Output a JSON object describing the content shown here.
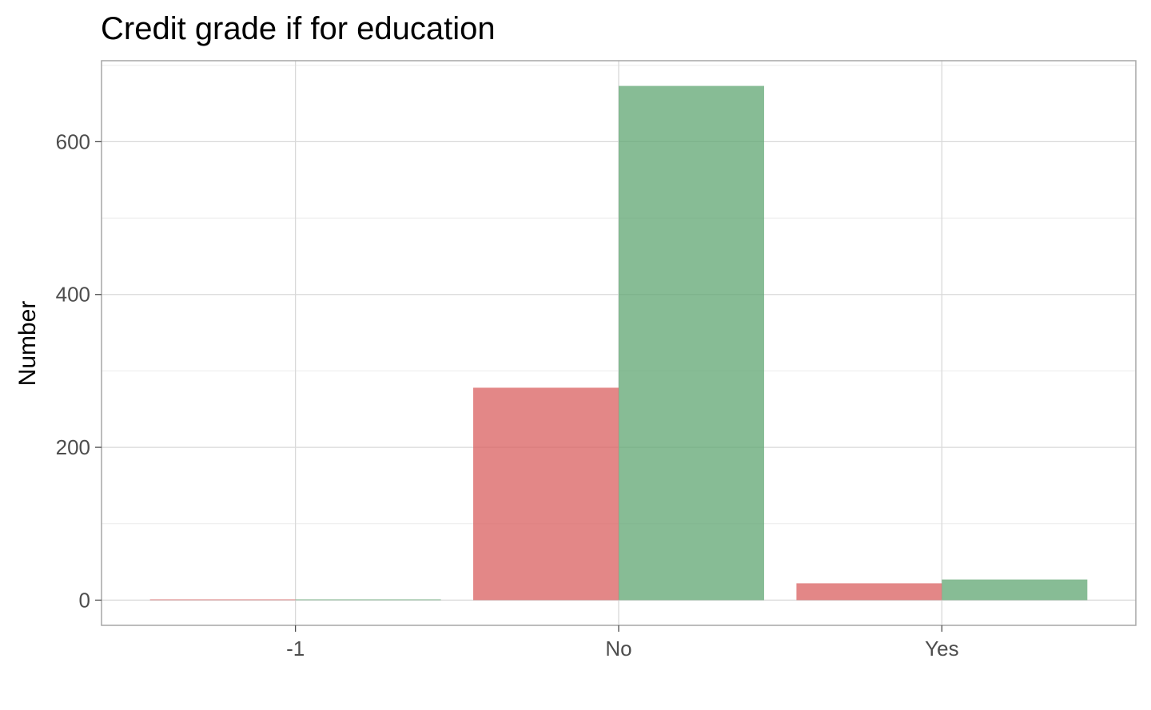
{
  "chart_data": {
    "type": "bar",
    "title": "Credit grade if for education",
    "xlabel": "",
    "ylabel": "Number",
    "categories": [
      "-1",
      "No",
      "Yes"
    ],
    "series": [
      {
        "values": [
          1,
          278,
          22
        ]
      },
      {
        "values": [
          1,
          673,
          27
        ]
      }
    ],
    "ylim": [
      -33,
      706
    ],
    "yticks": [
      0,
      200,
      400,
      600
    ],
    "grid": true,
    "legend": "none",
    "colors": [
      "#d95f5f",
      "#5fa572"
    ]
  }
}
